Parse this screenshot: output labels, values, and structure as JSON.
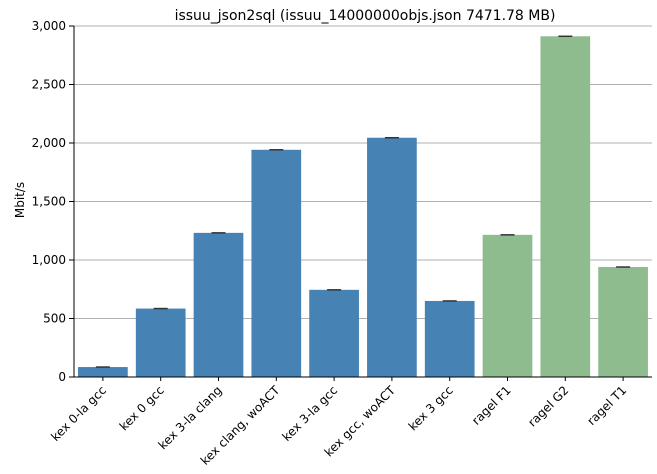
{
  "chart_data": {
    "type": "bar",
    "title": "issuu_json2sql (issuu_14000000objs.json 7471.78 MB)",
    "xlabel": "",
    "ylabel": "Mbit/s",
    "ylim": [
      0,
      3000
    ],
    "yticks": [
      0,
      500,
      1000,
      1500,
      2000,
      2500,
      3000
    ],
    "ytick_labels": [
      "0",
      "500",
      "1,000",
      "1,500",
      "2,000",
      "2,500",
      "3,000"
    ],
    "grid": "horizontal",
    "categories": [
      "kex 0-la gcc",
      "kex 0 gcc",
      "kex 3-la clang",
      "kex clang, woACT",
      "kex 3-la gcc",
      "kex gcc, woACT",
      "kex 3 gcc",
      "ragel F1",
      "ragel G2",
      "ragel T1"
    ],
    "values": [
      85,
      585,
      1232,
      1942,
      745,
      2045,
      650,
      1215,
      2912,
      940
    ],
    "bar_colors": [
      "#4682b4",
      "#4682b4",
      "#4682b4",
      "#4682b4",
      "#4682b4",
      "#4682b4",
      "#4682b4",
      "#8fbc8f",
      "#8fbc8f",
      "#8fbc8f"
    ],
    "error_bars": true
  }
}
